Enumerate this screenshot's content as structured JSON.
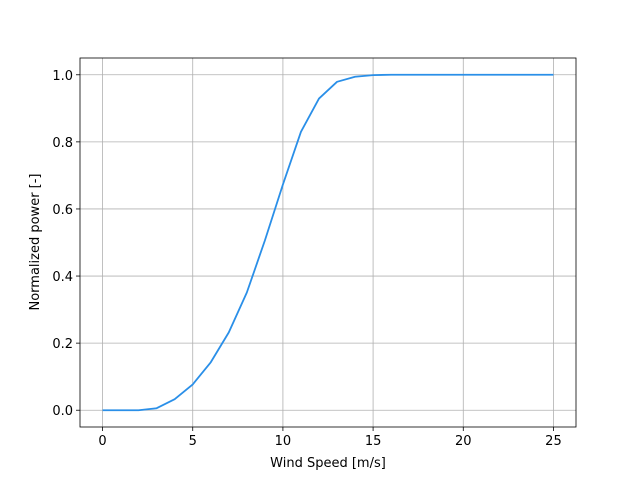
{
  "chart_data": {
    "type": "line",
    "xlabel": "Wind Speed [m/s]",
    "ylabel": "Normalized power [-]",
    "x": [
      0,
      1,
      2,
      3,
      4,
      5,
      6,
      7,
      8,
      9,
      10,
      11,
      12,
      13,
      14,
      15,
      16,
      17,
      18,
      19,
      20,
      21,
      22,
      23,
      24,
      25
    ],
    "values": [
      0,
      0,
      0,
      0.006,
      0.033,
      0.077,
      0.143,
      0.232,
      0.351,
      0.506,
      0.673,
      0.83,
      0.929,
      0.979,
      0.994,
      0.999,
      1,
      1,
      1,
      1,
      1,
      1,
      1,
      1,
      1,
      1
    ],
    "color": "#2a8fe8",
    "xlim": [
      -1.25,
      26.25
    ],
    "ylim": [
      -0.05,
      1.05
    ],
    "xticks": [
      0,
      5,
      10,
      15,
      20,
      25
    ],
    "yticks": [
      {
        "value": 0,
        "label": "0.0"
      },
      {
        "value": 0.2,
        "label": "0.2"
      },
      {
        "value": 0.4,
        "label": "0.4"
      },
      {
        "value": 0.6,
        "label": "0.6"
      },
      {
        "value": 0.8,
        "label": "0.8"
      },
      {
        "value": 1,
        "label": "1.0"
      }
    ],
    "grid": true
  }
}
